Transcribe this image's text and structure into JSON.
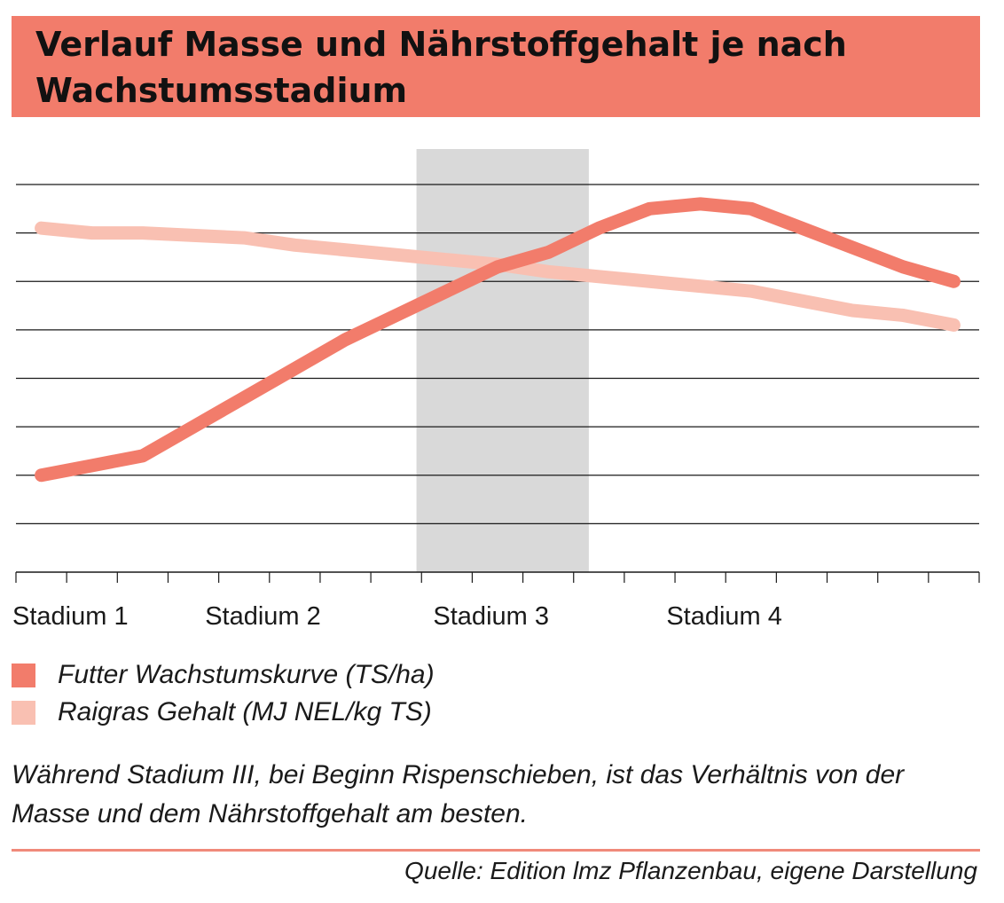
{
  "title": "Verlauf Masse und Nährstoffgehalt je nach Wachstumsstadium",
  "colors": {
    "header": "#f27c6b",
    "series1": "#f27c6b",
    "series2": "#f9c0b2",
    "highlight": "#d9d9d9",
    "grid": "#1a1a1a"
  },
  "chart_data": {
    "type": "line",
    "title": "Verlauf Masse und Nährstoffgehalt je nach Wachstumsstadium",
    "xlabel": "",
    "ylabel": "",
    "x": [
      0.5,
      1.5,
      2.5,
      3.5,
      4.5,
      5.5,
      6.5,
      7.5,
      8.5,
      9.5,
      10.5,
      11.5,
      12.5,
      13.5,
      14.5,
      15.5,
      16.5,
      17.5,
      18.5
    ],
    "xlim": [
      0,
      19
    ],
    "ylim": [
      0,
      8
    ],
    "grid": true,
    "categories": [
      {
        "label": "Stadium 1",
        "pos": 0
      },
      {
        "label": "Stadium 2",
        "pos": 3.8
      },
      {
        "label": "Stadium 3",
        "pos": 8.3
      },
      {
        "label": "Stadium 4",
        "pos": 12.9
      }
    ],
    "highlight": {
      "from": 7.9,
      "to": 11.3,
      "label": "Stadium 3"
    },
    "series": [
      {
        "name": "Futter Wachstumskurve (TS/ha)",
        "values": [
          2.0,
          2.2,
          2.4,
          3.0,
          3.6,
          4.2,
          4.8,
          5.3,
          5.8,
          6.3,
          6.6,
          7.1,
          7.5,
          7.6,
          7.5,
          7.1,
          6.7,
          6.3,
          6.0
        ]
      },
      {
        "name": "Raigras Gehalt (MJ NEL/kg TS)",
        "values": [
          7.1,
          7.0,
          7.0,
          6.95,
          6.9,
          6.75,
          6.65,
          6.55,
          6.45,
          6.35,
          6.2,
          6.1,
          6.0,
          5.9,
          5.8,
          5.6,
          5.4,
          5.3,
          5.1
        ]
      }
    ]
  },
  "legend": [
    {
      "label": "Futter Wachstumskurve (TS/ha)",
      "color": "#f27c6b"
    },
    {
      "label": "Raigras Gehalt (MJ NEL/kg TS)",
      "color": "#f9c0b2"
    }
  ],
  "note": "Während Stadium III, bei Beginn Rispenschieben, ist das Verhältnis von der Masse und dem Nährstoffgehalt am besten.",
  "source": "Quelle: Edition lmz Pflanzenbau, eigene Darstellung"
}
